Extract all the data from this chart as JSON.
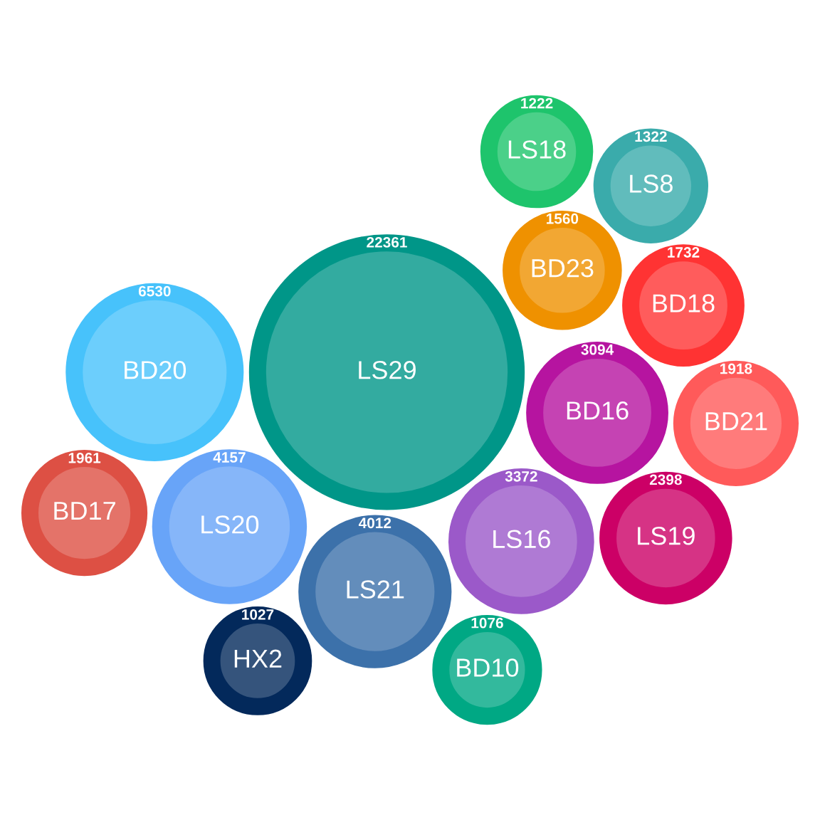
{
  "chart_data": {
    "type": "other",
    "categories": [
      "BD23",
      "LS16",
      "BD18",
      "LS21",
      "LS19",
      "LS29",
      "BD10",
      "BD20",
      "HX2",
      "LS18",
      "BD17",
      "BD21",
      "LS20",
      "BD16",
      "LS8"
    ],
    "values": [
      1560,
      3372,
      1732,
      4012,
      2398,
      22361,
      1076,
      6530,
      1027,
      1222,
      1961,
      1918,
      4157,
      3094,
      1322
    ],
    "colors": [
      "#ef9100",
      "#9b59c9",
      "#ff3333",
      "#3c71aa",
      "#cc0066",
      "#009688",
      "#00a884",
      "#47c2fb",
      "#03295b",
      "#1ec46c",
      "#dd5044",
      "#ff5a5a",
      "#68a4f8",
      "#b614a0",
      "#3aabab"
    ],
    "data_labels": true
  }
}
